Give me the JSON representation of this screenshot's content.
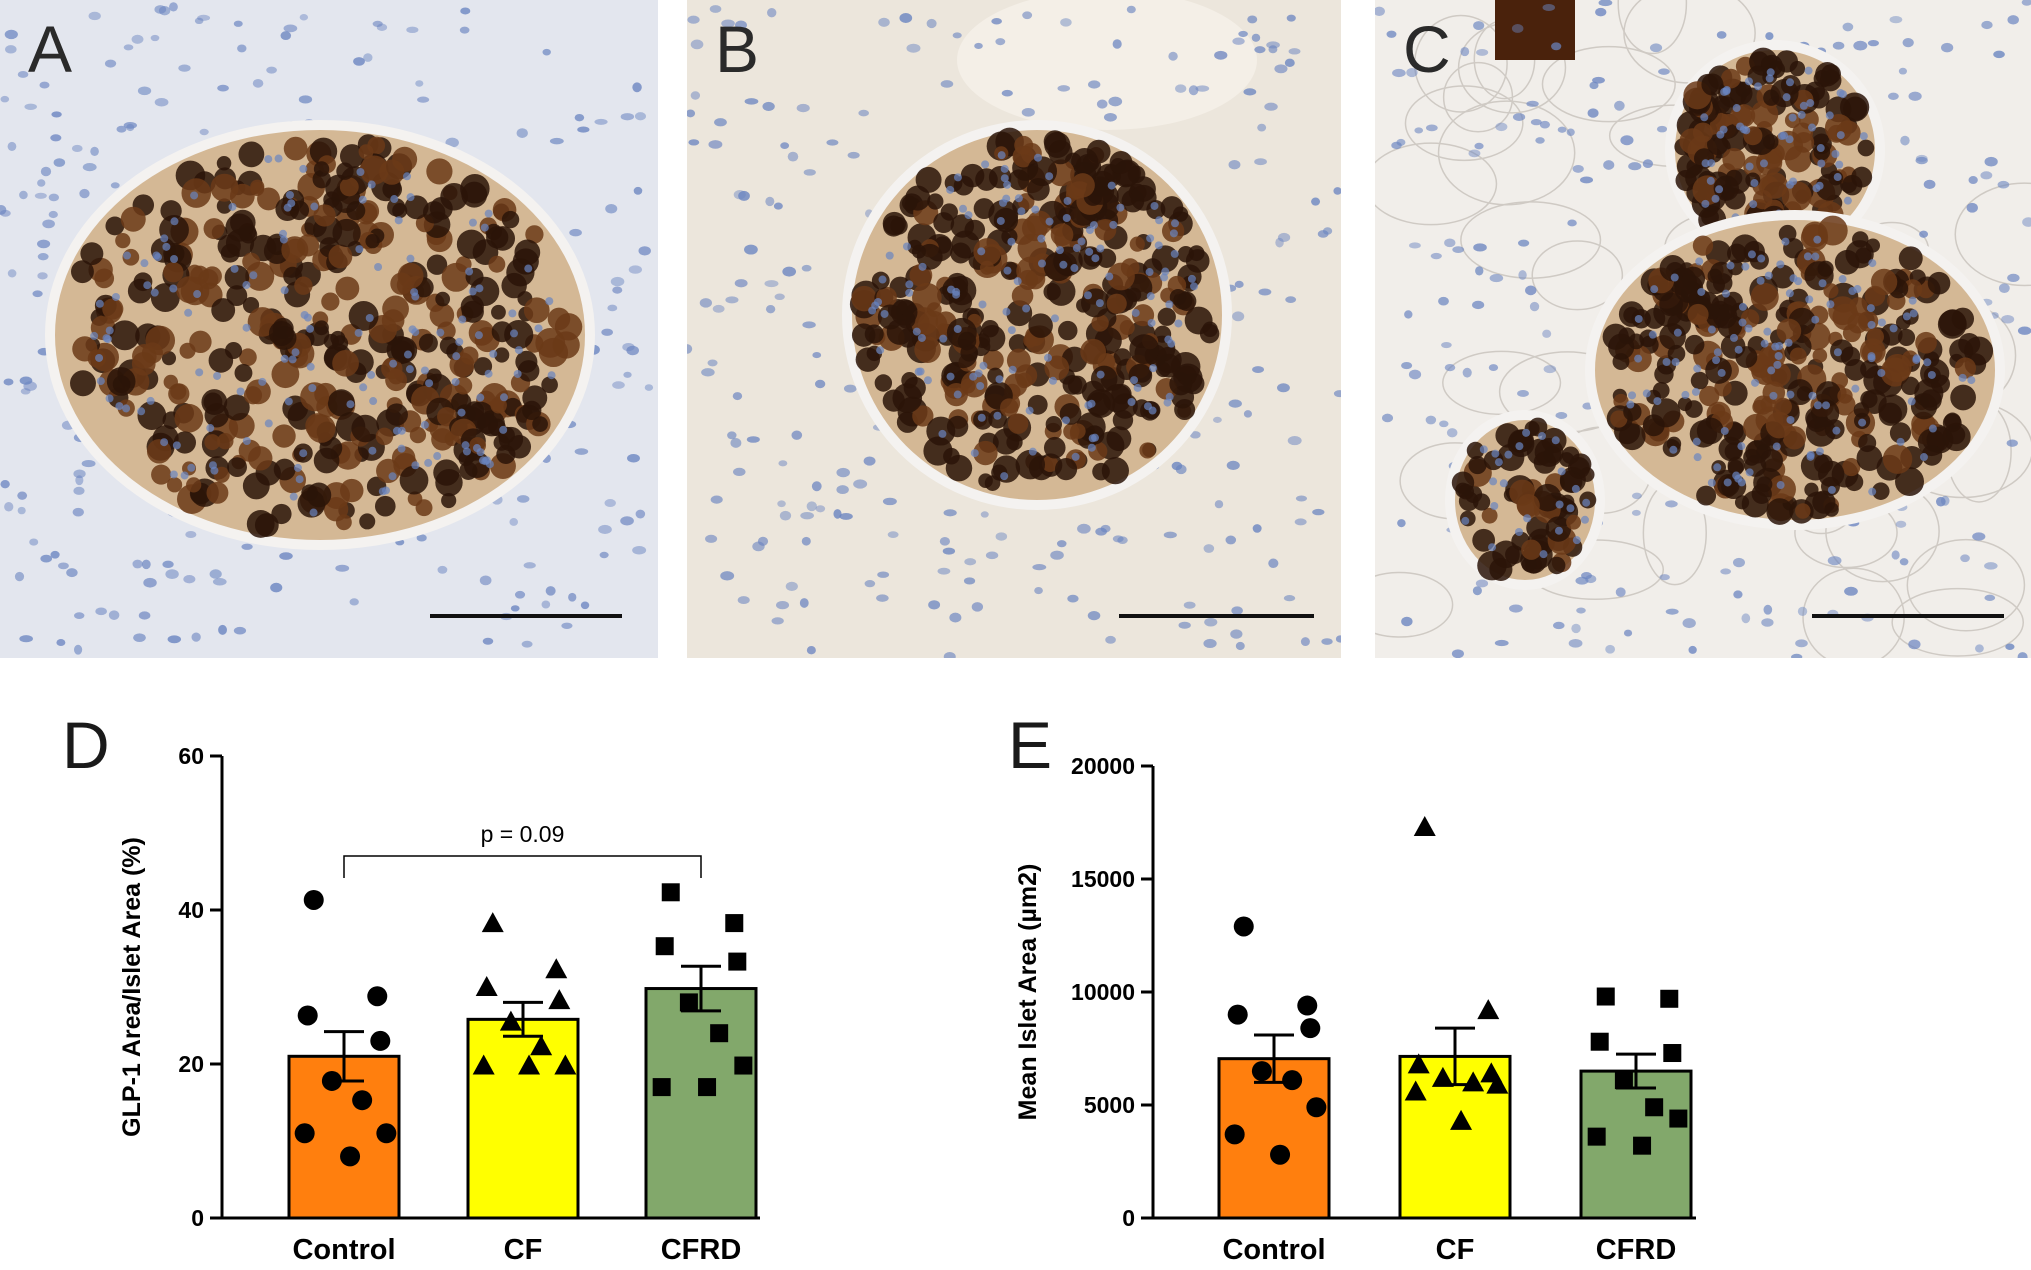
{
  "panels": [
    {
      "letter": "A",
      "tissue_color": "#e3e6ee",
      "nucleus_color": "#6a84c0"
    },
    {
      "letter": "B",
      "tissue_color": "#ece6dc",
      "nucleus_color": "#6a84c0"
    },
    {
      "letter": "C",
      "tissue_color": "#f1eeea",
      "nucleus_color": "#6a84c0"
    }
  ],
  "colors": {
    "stain_dark": "#2a1408",
    "stain_mid": "#6b3a18",
    "stain_light": "#c9a477",
    "scale_bar": "#111111"
  },
  "chart_data": [
    {
      "panel_letter": "D",
      "type": "bar",
      "title": "",
      "ylabel": "GLP-1 Area/Islet Area (%)",
      "xlabel": "",
      "categories": [
        "Control",
        "CF",
        "CFRD"
      ],
      "values": [
        21.0,
        25.8,
        29.8
      ],
      "sem": [
        3.2,
        2.2,
        2.9
      ],
      "ylim": [
        0,
        60
      ],
      "yticks": [
        "0",
        "20",
        "40",
        "60"
      ],
      "bar_colors": [
        "#ff7f0e",
        "#ffff00",
        "#82a86b"
      ],
      "markers": [
        "circle",
        "triangle",
        "square"
      ],
      "points": [
        [
          41.3,
          28.8,
          26.3,
          23.0,
          17.8,
          15.3,
          11.0,
          11.0,
          8.0
        ],
        [
          38.3,
          32.3,
          30.0,
          28.3,
          25.5,
          22.3,
          19.8,
          19.8,
          19.8
        ],
        [
          42.3,
          38.3,
          35.3,
          33.3,
          28.0,
          24.0,
          19.8,
          17.0,
          17.0
        ]
      ],
      "annotation": "p = 0.09",
      "bracket": [
        "Control",
        "CFRD"
      ]
    },
    {
      "panel_letter": "E",
      "type": "bar",
      "title": "",
      "ylabel": "Mean Islet Area (µm2)",
      "xlabel": "",
      "categories": [
        "Control",
        "CF",
        "CFRD"
      ],
      "values": [
        7050,
        7150,
        6500
      ],
      "sem": [
        1050,
        1250,
        750
      ],
      "ylim": [
        0,
        20000
      ],
      "yticks": [
        "0",
        "5000",
        "10000",
        "15000",
        "20000"
      ],
      "bar_colors": [
        "#ff7f0e",
        "#ffff00",
        "#82a86b"
      ],
      "markers": [
        "circle",
        "triangle",
        "square"
      ],
      "points": [
        [
          12900,
          9400,
          9000,
          8400,
          6500,
          6100,
          4900,
          3700,
          2800
        ],
        [
          17300,
          9200,
          6800,
          6400,
          6200,
          6000,
          5900,
          5600,
          4300
        ],
        [
          9800,
          9700,
          7800,
          7300,
          6100,
          4900,
          4400,
          3600,
          3200
        ]
      ],
      "annotation": "",
      "bracket": []
    }
  ]
}
